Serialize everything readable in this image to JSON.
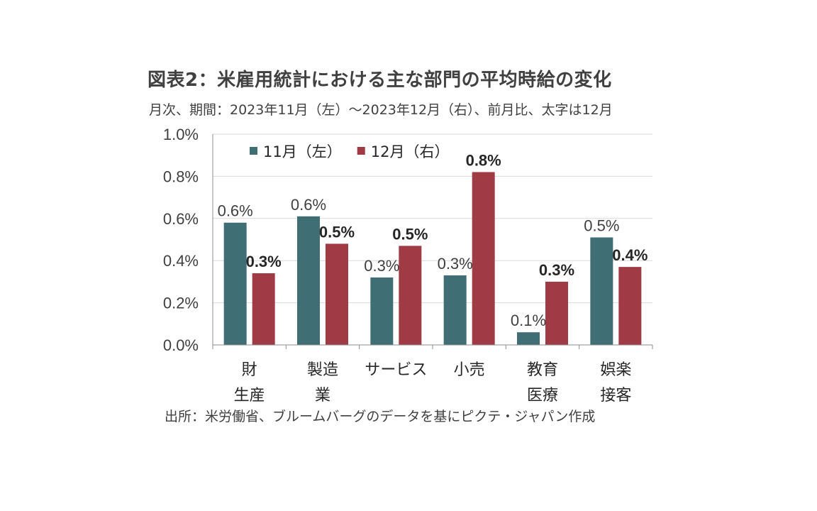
{
  "title": "図表2：米雇用統計における主な部門の平均時給の変化",
  "subtitle": "月次、期間：2023年11月（左）～2023年12月（右）、前月比、太字は12月",
  "source": "出所：米労働省、ブルームバーグのデータを基にピクテ・ジャパン作成",
  "chart_data": {
    "type": "bar",
    "categories": [
      [
        "財",
        "生産"
      ],
      [
        "製造",
        "業"
      ],
      [
        "サービス"
      ],
      [
        "小売"
      ],
      [
        "教育",
        "医療"
      ],
      [
        "娯楽",
        "接客"
      ]
    ],
    "series": [
      {
        "name": "11月（左）",
        "color": "#3f6f74",
        "values": [
          0.58,
          0.61,
          0.32,
          0.33,
          0.06,
          0.51
        ],
        "labels": [
          "0.6%",
          "0.6%",
          "0.3%",
          "0.3%",
          "0.1%",
          "0.5%"
        ],
        "label_weight": "normal"
      },
      {
        "name": "12月（右）",
        "color": "#a03b45",
        "values": [
          0.34,
          0.48,
          0.47,
          0.82,
          0.3,
          0.37
        ],
        "labels": [
          "0.3%",
          "0.5%",
          "0.5%",
          "0.8%",
          "0.3%",
          "0.4%"
        ],
        "label_weight": "bold"
      }
    ],
    "ylim": [
      0,
      1.0
    ],
    "yticks": [
      0,
      0.2,
      0.4,
      0.6,
      0.8,
      1.0
    ],
    "ytick_labels": [
      "0.0%",
      "0.2%",
      "0.4%",
      "0.6%",
      "0.8%",
      "1.0%"
    ],
    "grid": true,
    "legend_position": "top-left"
  }
}
